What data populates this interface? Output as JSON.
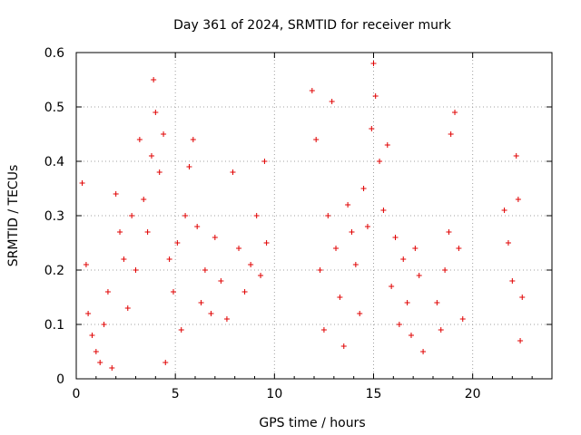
{
  "chart_data": {
    "type": "scatter",
    "title": "Day 361 of 2024, SRMTID for receiver murk",
    "xlabel": "GPS time / hours",
    "ylabel": "SRMTID / TECUs",
    "xlim": [
      0,
      24
    ],
    "ylim": [
      0,
      0.6
    ],
    "xticks": [
      0,
      5,
      10,
      15,
      20
    ],
    "xtick_labels": [
      "0",
      "5",
      "10",
      "15",
      "20"
    ],
    "yticks": [
      0,
      0.1,
      0.2,
      0.3,
      0.4,
      0.5,
      0.6
    ],
    "ytick_labels": [
      "0",
      "0.1",
      "0.2",
      "0.3",
      "0.4",
      "0.5",
      "0.6"
    ],
    "grid": true,
    "marker": "+",
    "color": "#e00000",
    "series": [
      {
        "name": "SRMTID",
        "points": [
          [
            0.3,
            0.36
          ],
          [
            0.5,
            0.21
          ],
          [
            0.6,
            0.12
          ],
          [
            0.8,
            0.08
          ],
          [
            1.0,
            0.05
          ],
          [
            1.2,
            0.03
          ],
          [
            1.4,
            0.1
          ],
          [
            1.6,
            0.16
          ],
          [
            1.8,
            0.02
          ],
          [
            2.0,
            0.34
          ],
          [
            2.2,
            0.27
          ],
          [
            2.4,
            0.22
          ],
          [
            2.6,
            0.13
          ],
          [
            2.8,
            0.3
          ],
          [
            3.0,
            0.2
          ],
          [
            3.2,
            0.44
          ],
          [
            3.4,
            0.33
          ],
          [
            3.6,
            0.27
          ],
          [
            3.8,
            0.41
          ],
          [
            3.9,
            0.55
          ],
          [
            4.0,
            0.49
          ],
          [
            4.2,
            0.38
          ],
          [
            4.4,
            0.45
          ],
          [
            4.5,
            0.03
          ],
          [
            4.7,
            0.22
          ],
          [
            4.9,
            0.16
          ],
          [
            5.1,
            0.25
          ],
          [
            5.3,
            0.09
          ],
          [
            5.5,
            0.3
          ],
          [
            5.7,
            0.39
          ],
          [
            5.9,
            0.44
          ],
          [
            6.1,
            0.28
          ],
          [
            6.3,
            0.14
          ],
          [
            6.5,
            0.2
          ],
          [
            6.8,
            0.12
          ],
          [
            7.0,
            0.26
          ],
          [
            7.3,
            0.18
          ],
          [
            7.6,
            0.11
          ],
          [
            7.9,
            0.38
          ],
          [
            8.2,
            0.24
          ],
          [
            8.5,
            0.16
          ],
          [
            8.8,
            0.21
          ],
          [
            9.1,
            0.3
          ],
          [
            9.3,
            0.19
          ],
          [
            9.5,
            0.4
          ],
          [
            9.6,
            0.25
          ],
          [
            11.9,
            0.53
          ],
          [
            12.1,
            0.44
          ],
          [
            12.3,
            0.2
          ],
          [
            12.5,
            0.09
          ],
          [
            12.7,
            0.3
          ],
          [
            12.9,
            0.51
          ],
          [
            13.1,
            0.24
          ],
          [
            13.3,
            0.15
          ],
          [
            13.5,
            0.06
          ],
          [
            13.7,
            0.32
          ],
          [
            13.9,
            0.27
          ],
          [
            14.1,
            0.21
          ],
          [
            14.3,
            0.12
          ],
          [
            14.5,
            0.35
          ],
          [
            14.7,
            0.28
          ],
          [
            14.9,
            0.46
          ],
          [
            15.0,
            0.58
          ],
          [
            15.1,
            0.52
          ],
          [
            15.3,
            0.4
          ],
          [
            15.5,
            0.31
          ],
          [
            15.7,
            0.43
          ],
          [
            15.9,
            0.17
          ],
          [
            16.1,
            0.26
          ],
          [
            16.3,
            0.1
          ],
          [
            16.5,
            0.22
          ],
          [
            16.7,
            0.14
          ],
          [
            16.9,
            0.08
          ],
          [
            17.1,
            0.24
          ],
          [
            17.3,
            0.19
          ],
          [
            17.5,
            0.05
          ],
          [
            18.2,
            0.14
          ],
          [
            18.4,
            0.09
          ],
          [
            18.6,
            0.2
          ],
          [
            18.8,
            0.27
          ],
          [
            18.9,
            0.45
          ],
          [
            19.1,
            0.49
          ],
          [
            19.3,
            0.24
          ],
          [
            19.5,
            0.11
          ],
          [
            21.6,
            0.31
          ],
          [
            21.8,
            0.25
          ],
          [
            22.0,
            0.18
          ],
          [
            22.2,
            0.41
          ],
          [
            22.3,
            0.33
          ],
          [
            22.4,
            0.07
          ],
          [
            22.5,
            0.15
          ]
        ]
      }
    ]
  }
}
